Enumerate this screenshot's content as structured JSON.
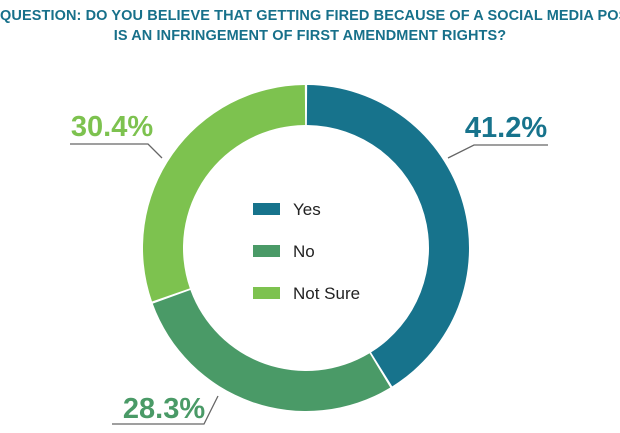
{
  "title": {
    "line1": "QUESTION: DO YOU BELIEVE THAT GETTING FIRED BECAUSE OF A SOCIAL MEDIA POST",
    "line2": "IS AN INFRINGEMENT OF FIRST AMENDMENT RIGHTS?"
  },
  "chart_data": {
    "type": "pie",
    "donut": true,
    "title": "QUESTION: DO YOU BELIEVE THAT GETTING FIRED BECAUSE OF A SOCIAL MEDIA POST IS AN INFRINGEMENT OF FIRST AMENDMENT RIGHTS?",
    "slices": [
      {
        "name": "Yes",
        "value": 41.2,
        "label": "41.2%",
        "color": "#17738c",
        "label_color": "#17738c"
      },
      {
        "name": "No",
        "value": 28.3,
        "label": "28.3%",
        "color": "#4a9a67",
        "label_color": "#4a9a67"
      },
      {
        "name": "Not Sure",
        "value": 30.4,
        "label": "30.4%",
        "color": "#7dc24f",
        "label_color": "#7dc24f"
      }
    ],
    "legend": {
      "placement": "center",
      "entries": [
        "Yes",
        "No",
        "Not Sure"
      ]
    }
  }
}
